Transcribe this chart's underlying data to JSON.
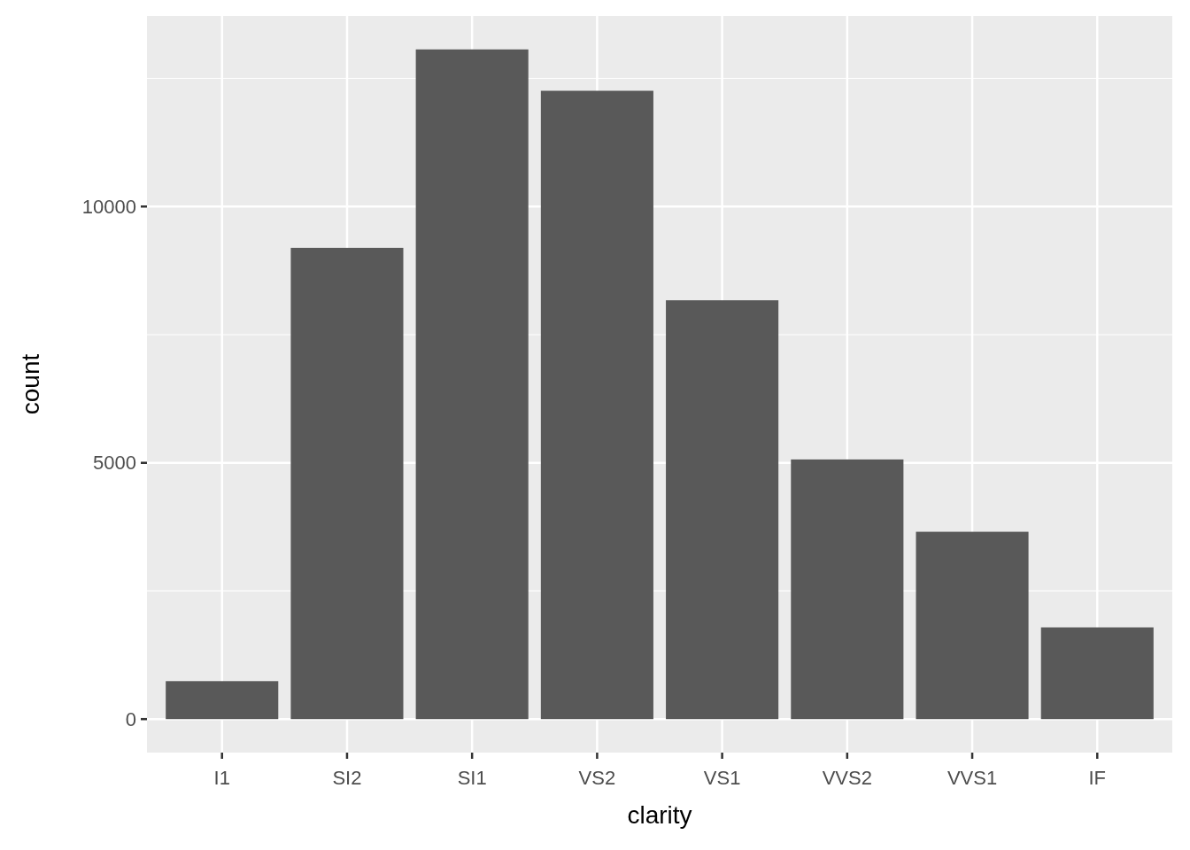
{
  "chart_data": {
    "type": "bar",
    "xlabel": "clarity",
    "ylabel": "count",
    "categories": [
      "I1",
      "SI2",
      "SI1",
      "VS2",
      "VS1",
      "VVS2",
      "VVS1",
      "IF"
    ],
    "values": [
      741,
      9194,
      13065,
      12258,
      8171,
      5066,
      3655,
      1790
    ],
    "color": "#595959",
    "ylim": [
      -653,
      13718
    ],
    "yticks": [
      0,
      5000,
      10000
    ],
    "grid": true
  }
}
